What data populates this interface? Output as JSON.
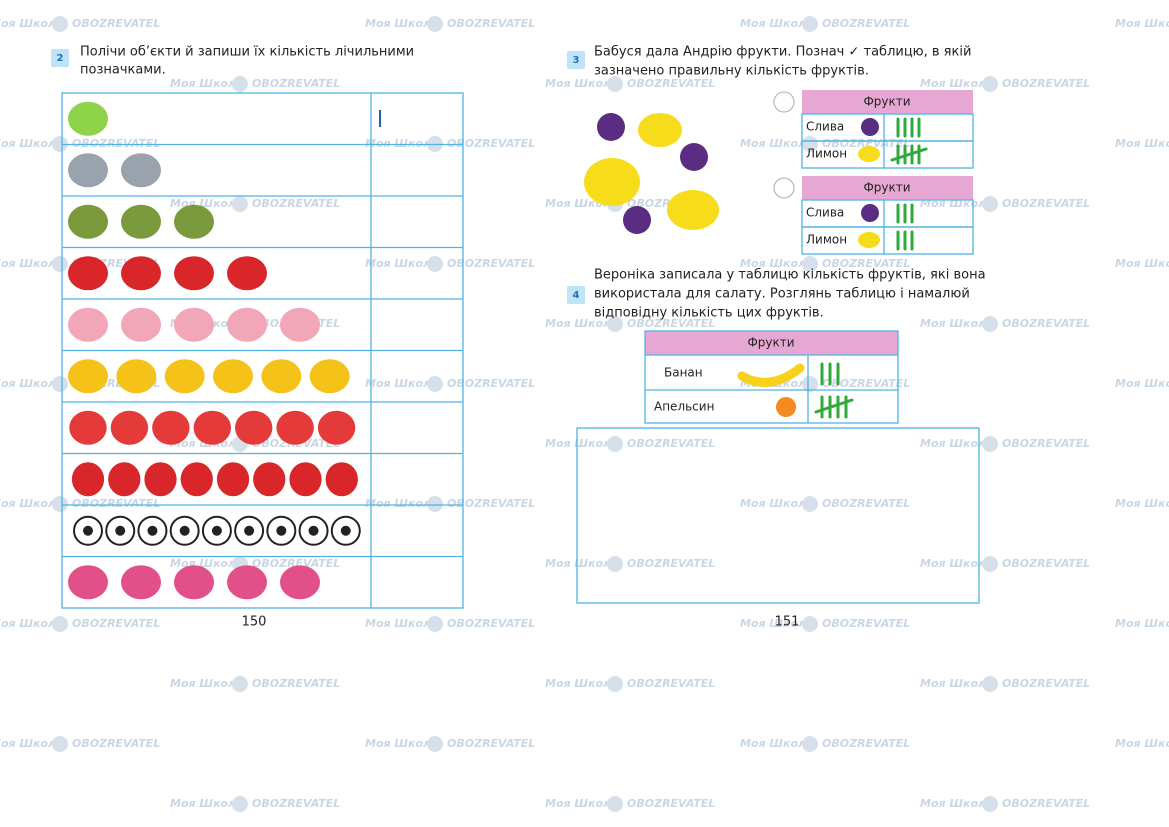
{
  "watermark": {
    "brand": "Моя Школа",
    "partner": "OBOZREVATEL"
  },
  "left_page": {
    "task_number": "2",
    "instruction": [
      "Полічи об’єкти й запиши їх кількість лічильними",
      "позначками."
    ],
    "page_number": "150"
  },
  "right_page": {
    "task3": {
      "number": "3",
      "instruction": [
        "Бабуся дала Андрію фрукти. Познач ✓ таблицю, в якій",
        "зазначено правильну кількість фруктів."
      ],
      "tables": [
        {
          "header": "Фрукти",
          "rows": [
            "Слива",
            "Лимон"
          ]
        },
        {
          "header": "Фрукти",
          "rows": [
            "Слива",
            "Лимон"
          ]
        }
      ]
    },
    "task4": {
      "number": "4",
      "instruction": [
        "Вероніка записала у таблицю кількість фруктів, які вона",
        "використала для салату. Розглянь таблицю і намалюй",
        "відповідну кількість цих фруктів."
      ],
      "table": {
        "header": "Фрукти",
        "rows": [
          "Банан",
          "Апельсин"
        ]
      }
    },
    "page_number": "151"
  }
}
